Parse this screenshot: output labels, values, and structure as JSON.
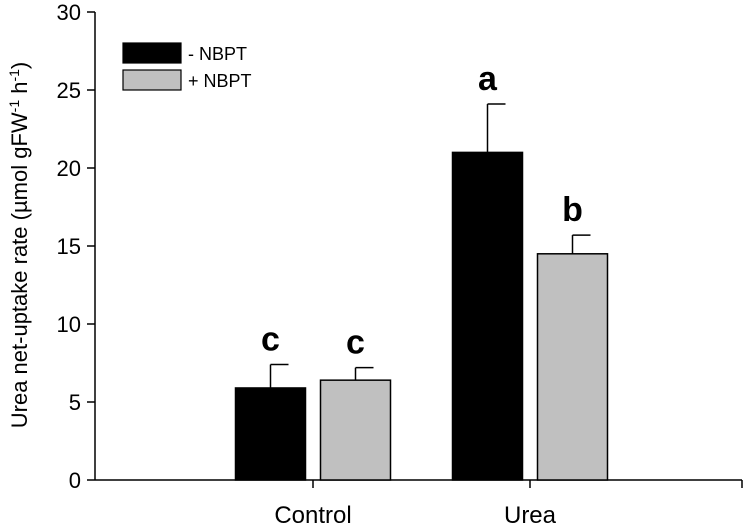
{
  "chart_data": {
    "type": "bar",
    "categories": [
      "Control",
      "Urea"
    ],
    "series": [
      {
        "name": "- NBPT",
        "values": [
          5.9,
          21.0
        ],
        "errors": [
          1.5,
          3.1
        ],
        "letters": [
          "c",
          "a"
        ],
        "color": "#000000"
      },
      {
        "name": "+ NBPT",
        "values": [
          6.4,
          14.5
        ],
        "errors": [
          0.8,
          1.2
        ],
        "letters": [
          "c",
          "b"
        ],
        "color": "#c0c0c0"
      }
    ],
    "xlabel": "",
    "ylabel": {
      "main": "Urea net-uptake rate (µmol gFW",
      "sup1": "-1",
      "mid": " h",
      "sup2": "-1",
      "end": ")"
    },
    "ylim": [
      0,
      30
    ],
    "yticks": [
      0,
      5,
      10,
      15,
      20,
      25,
      30
    ],
    "grid": false,
    "legend_position": "top-left"
  }
}
